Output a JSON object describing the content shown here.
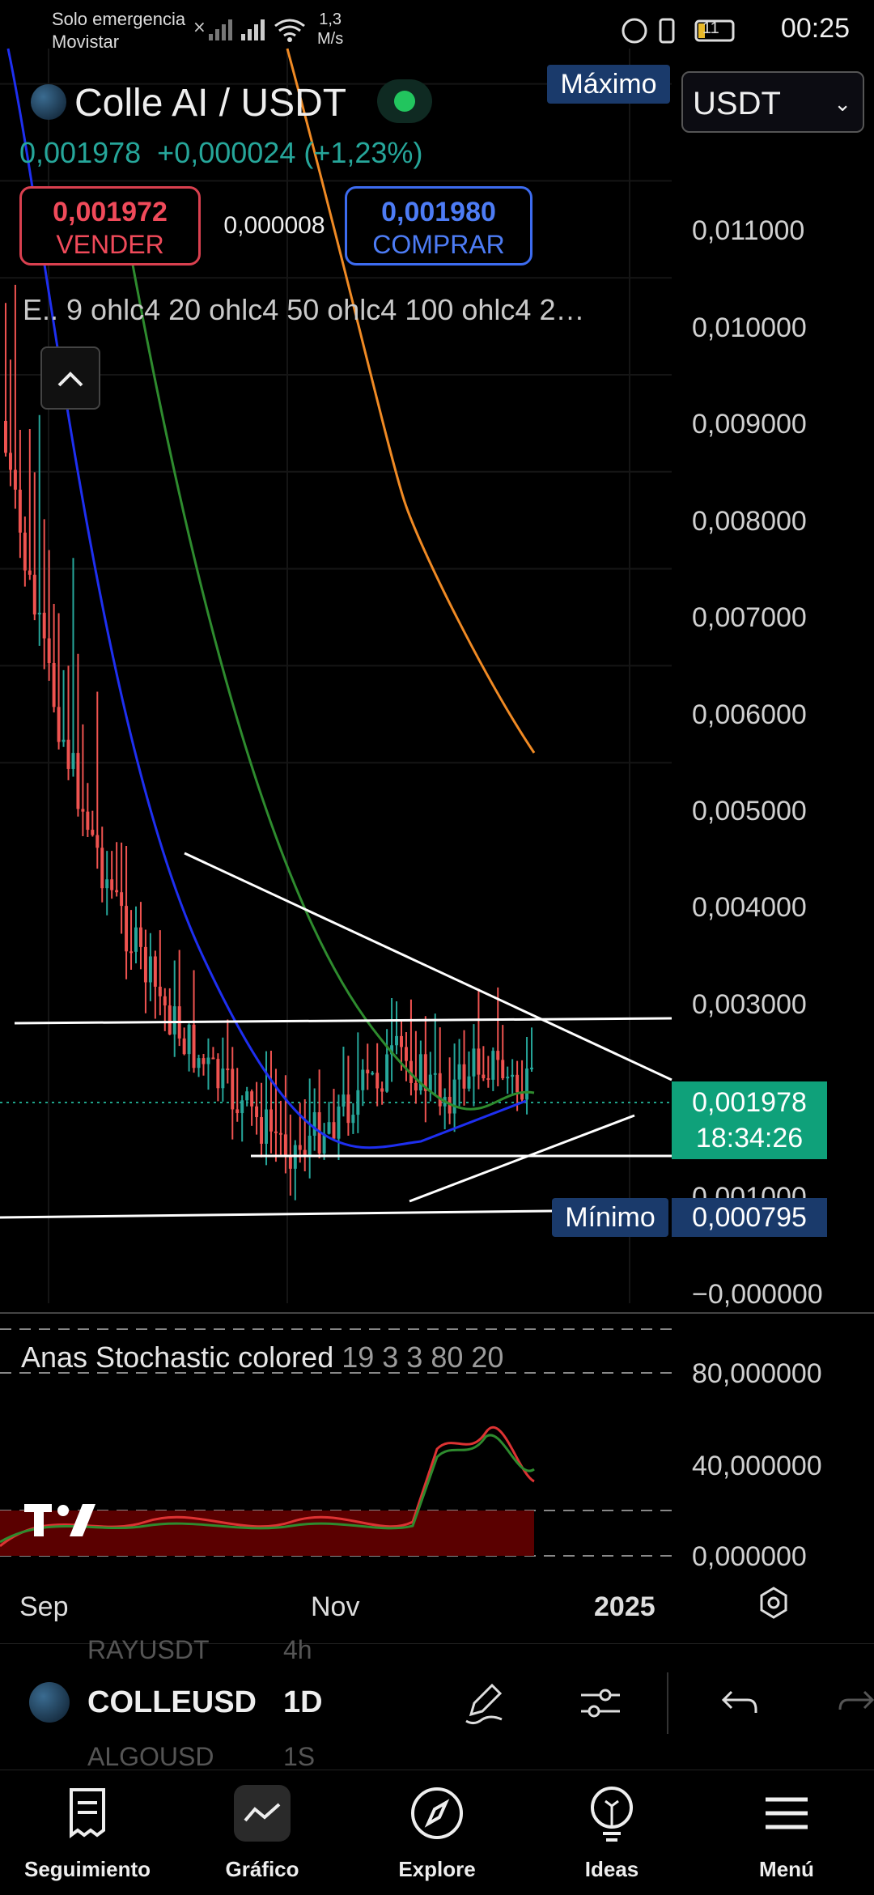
{
  "status_bar": {
    "carrier_line1": "Solo emergencia",
    "carrier_line2": "Movistar",
    "speed_value": "1,3",
    "speed_unit": "M/s",
    "battery": "11",
    "time": "00:25"
  },
  "header": {
    "pair_title": "Colle AI / USDT",
    "last_price": "0,001978",
    "change": "+0,000024 (+1,23%)",
    "sell_price": "0,001972",
    "sell_label": "VENDER",
    "spread": "0,000008",
    "buy_price": "0,001980",
    "buy_label": "COMPRAR",
    "indicators_text": "E.. 9 ohlc4 20 ohlc4 50 ohlc4 100 ohlc4 2…",
    "collapse_icon": "chevron-up-icon"
  },
  "price_scale": {
    "unit_select": "USDT",
    "max_label": "Máximo",
    "min_label": "Mínimo",
    "min_value": "0,000795",
    "current_price": "0,001978",
    "countdown": "18:34:26",
    "ticks": [
      "0,011000",
      "0,010000",
      "0,009000",
      "0,008000",
      "0,007000",
      "0,006000",
      "0,005000",
      "0,004000",
      "0,003000",
      "0,001000",
      "−0,000000"
    ]
  },
  "stochastic": {
    "name": "Anas Stochastic colored",
    "params": "19 3 3 80 20",
    "ticks": [
      "80,000000",
      "40,000000",
      "0,000000"
    ]
  },
  "x_axis": {
    "labels": [
      "Sep",
      "Nov",
      "2025"
    ]
  },
  "toolbar": {
    "symbol": "COLLEUSD",
    "timeframe": "1D",
    "ghost_symbol_top": "RAYUSDT",
    "ghost_tf_top": "4h",
    "ghost_symbol_bottom": "ALGOUSD",
    "ghost_tf_bottom": "1S",
    "icons": [
      "pencil-icon",
      "sliders-icon",
      "undo-icon",
      "redo-icon"
    ]
  },
  "bottom_nav": {
    "items": [
      {
        "label": "Seguimiento",
        "icon": "watchlist-icon"
      },
      {
        "label": "Gráfico",
        "icon": "chart-icon"
      },
      {
        "label": "Explore",
        "icon": "compass-icon"
      },
      {
        "label": "Ideas",
        "icon": "lightbulb-icon"
      },
      {
        "label": "Menú",
        "icon": "menu-icon"
      }
    ]
  },
  "colors": {
    "up": "#26a69a",
    "down": "#ef5350",
    "ema9": "#1e2ff0",
    "ema20": "#2e8b2e",
    "ema50": "#f08a24",
    "accent_blue": "#1a3a6b"
  }
}
